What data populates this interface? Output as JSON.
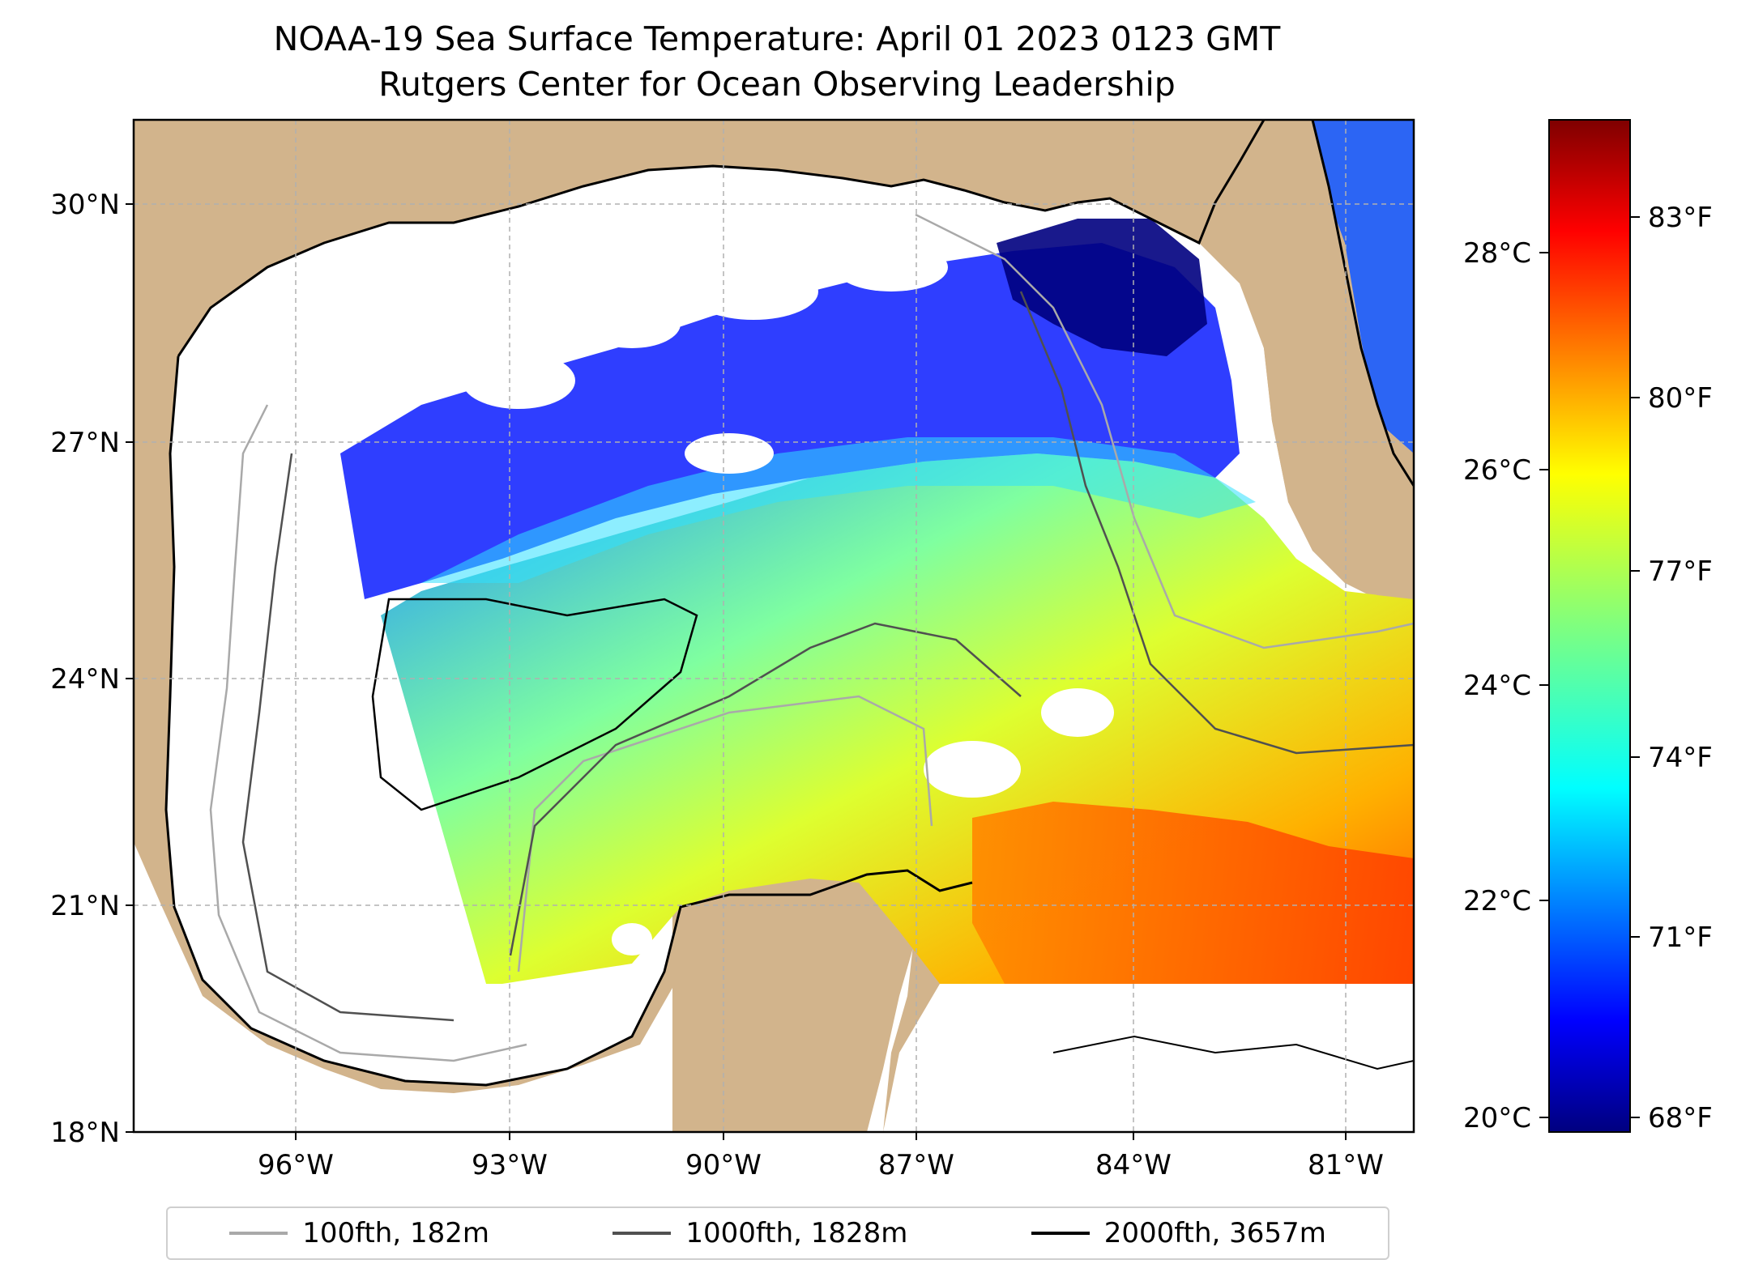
{
  "title": {
    "line1": "NOAA-19 Sea Surface Temperature: April 01 2023 0123 GMT",
    "line2": "Rutgers Center for Ocean Observing Leadership"
  },
  "map": {
    "lat_ticks": [
      "30°N",
      "27°N",
      "24°N",
      "21°N",
      "18°N"
    ],
    "lon_ticks": [
      "96°W",
      "93°W",
      "90°W",
      "87°W",
      "84°W",
      "81°W"
    ],
    "colors": {
      "land": "#d2b48c",
      "no_data": "#ffffff",
      "gridline": "#b0b0b0",
      "lakes": "#9fb8de"
    }
  },
  "colorbar": {
    "celsius_ticks": [
      "28°C",
      "26°C",
      "24°C",
      "22°C",
      "20°C"
    ],
    "fahrenheit_ticks": [
      "83°F",
      "80°F",
      "77°F",
      "74°F",
      "71°F",
      "68°F"
    ],
    "colormap": "jet",
    "colors": [
      "#00007f",
      "#0000ff",
      "#007fff",
      "#00ffff",
      "#7fff7f",
      "#ffff00",
      "#ff7f00",
      "#ff0000",
      "#7f0000"
    ]
  },
  "legend": {
    "items": [
      {
        "label": "100fth, 182m",
        "color": "#a9a9a9"
      },
      {
        "label": "1000fth, 1828m",
        "color": "#505050"
      },
      {
        "label": "2000fth, 3657m",
        "color": "#000000"
      }
    ]
  }
}
